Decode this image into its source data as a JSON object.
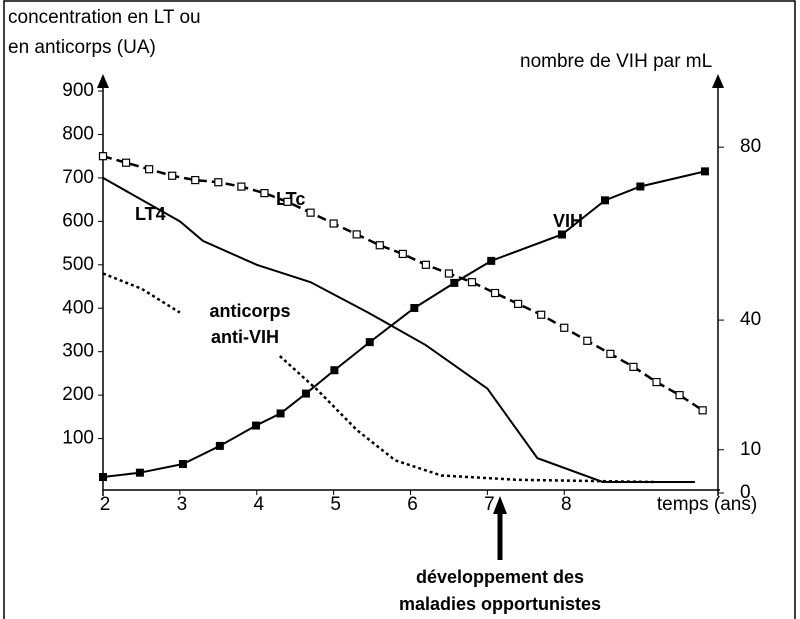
{
  "chart_data": {
    "type": "line",
    "ylabel": [
      "concentration en LT ou",
      "en anticorps  (UA)"
    ],
    "y2label": "nombre de VIH par mL",
    "xlabel": "temps (ans)",
    "xlim": [
      2,
      10
    ],
    "xticks": [
      2,
      3,
      4,
      5,
      6,
      7,
      8
    ],
    "ylim": [
      0,
      930
    ],
    "yticks": [
      100,
      200,
      300,
      400,
      500,
      600,
      700,
      800,
      900
    ],
    "y2lim": [
      0,
      96
    ],
    "y2ticks": [
      0,
      10,
      40,
      80
    ],
    "series": [
      {
        "name": "LT4",
        "color": "#000000",
        "style": "solid",
        "marker": "none",
        "x": [
          2,
          3,
          3.3,
          4,
          4.7,
          5.45,
          6.2,
          7,
          7.65,
          8.5,
          9.7
        ],
        "values": [
          700,
          600,
          555,
          500,
          460,
          390,
          315,
          215,
          55,
          0,
          0
        ]
      },
      {
        "name": "LTc",
        "color": "#000000",
        "style": "dashed",
        "marker": "open-square",
        "x": [
          2,
          2.3,
          2.6,
          2.9,
          3.2,
          3.5,
          3.8,
          4.1,
          4.4,
          4.7,
          5.0,
          5.3,
          5.6,
          5.9,
          6.2,
          6.5,
          6.8,
          7.1,
          7.4,
          7.7,
          8.0,
          8.3,
          8.6,
          8.9,
          9.2,
          9.5,
          9.8
        ],
        "values": [
          750,
          735,
          720,
          705,
          695,
          690,
          680,
          665,
          645,
          620,
          595,
          570,
          545,
          525,
          500,
          480,
          460,
          435,
          410,
          385,
          355,
          325,
          295,
          265,
          230,
          200,
          165
        ]
      },
      {
        "name": "anticorps anti-VIH",
        "color": "#000000",
        "style": "dotted",
        "marker": "none",
        "x": [
          2,
          2.5,
          3,
          3.6,
          4.3,
          4.8,
          5.3,
          5.8,
          6.4,
          7.4,
          9.2
        ],
        "values": [
          480,
          445,
          390,
          null,
          290,
          210,
          120,
          50,
          15,
          5,
          0
        ]
      },
      {
        "name": "VIH",
        "color": "#000000",
        "style": "solid",
        "marker": "filled-square",
        "axis": "y2",
        "x": [
          2,
          2.48,
          3.04,
          3.52,
          3.99,
          4.31,
          4.64,
          5.01,
          5.47,
          6.05,
          6.57,
          7.05,
          7.97,
          8.53,
          8.99,
          9.83
        ],
        "values": [
          3.7,
          4.7,
          6.7,
          10.9,
          15.6,
          18.4,
          23,
          28.4,
          34.9,
          42.8,
          48.6,
          53.7,
          59.8,
          67.7,
          70.9,
          74.4
        ]
      }
    ],
    "annotations": {
      "lt4": "LT4",
      "ltc": "LTc",
      "vih": "VIH",
      "anticorps": [
        "anticorps",
        "anti-VIH"
      ],
      "event": [
        "développement des",
        "maladies opportunistes"
      ]
    }
  }
}
